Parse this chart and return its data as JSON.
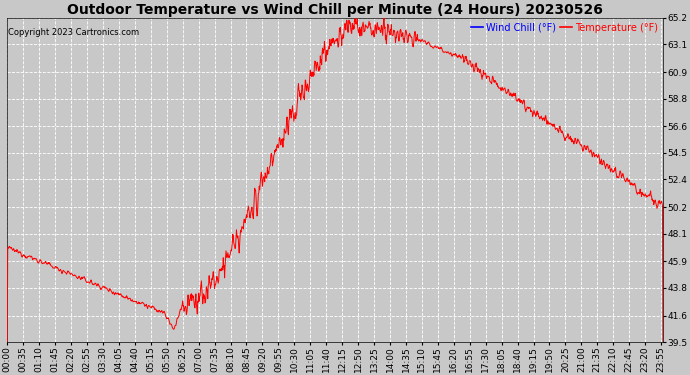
{
  "title": "Outdoor Temperature vs Wind Chill per Minute (24 Hours) 20230526",
  "copyright": "Copyright 2023 Cartronics.com",
  "legend_labels": [
    "Wind Chill (°F)",
    "Temperature (°F)"
  ],
  "legend_colors": [
    "blue",
    "red"
  ],
  "ylim": [
    39.5,
    65.2
  ],
  "yticks": [
    39.5,
    41.6,
    43.8,
    45.9,
    48.1,
    50.2,
    52.4,
    54.5,
    56.6,
    58.8,
    60.9,
    63.1,
    65.2
  ],
  "background_color": "#c8c8c8",
  "plot_bg_color": "#c8c8c8",
  "grid_color": "white",
  "line_color": "red",
  "title_fontsize": 10,
  "tick_fontsize": 6.5,
  "x_tick_labels": [
    "00:00",
    "00:35",
    "01:10",
    "01:45",
    "02:20",
    "02:55",
    "03:30",
    "04:05",
    "04:40",
    "05:15",
    "05:50",
    "06:25",
    "07:00",
    "07:35",
    "08:10",
    "08:45",
    "09:20",
    "09:55",
    "10:30",
    "11:05",
    "11:40",
    "12:15",
    "12:50",
    "13:25",
    "14:00",
    "14:35",
    "15:10",
    "15:45",
    "16:20",
    "16:55",
    "17:30",
    "18:05",
    "18:40",
    "19:15",
    "19:50",
    "20:25",
    "21:00",
    "21:35",
    "22:10",
    "22:45",
    "23:20",
    "23:55"
  ],
  "curve_seed": 12345,
  "n_points": 1440
}
